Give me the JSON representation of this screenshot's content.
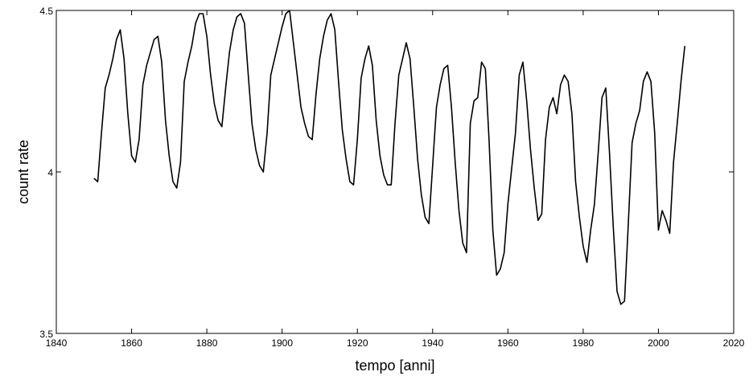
{
  "chart_data": {
    "type": "line",
    "title": "",
    "xlabel": "tempo [anni]",
    "ylabel": "count rate",
    "xlim": [
      1840,
      2020
    ],
    "ylim": [
      3.5,
      4.5
    ],
    "x_ticks": [
      1840,
      1860,
      1880,
      1900,
      1920,
      1940,
      1960,
      1980,
      2000,
      2020
    ],
    "y_ticks": [
      3.5,
      4,
      4.5
    ],
    "x_tick_labels": [
      "1840",
      "1860",
      "1880",
      "1900",
      "1920",
      "1940",
      "1960",
      "1980",
      "2000",
      "2020"
    ],
    "y_tick_labels": [
      "3.5",
      "4",
      "4.5"
    ],
    "grid": false,
    "legend": "none",
    "line_color": "#000000",
    "series": [
      {
        "x": [
          1850,
          1851,
          1852,
          1853,
          1854,
          1855,
          1856,
          1857,
          1858,
          1859,
          1860,
          1861,
          1862,
          1863,
          1864,
          1865,
          1866,
          1867,
          1868,
          1869,
          1870,
          1871,
          1872,
          1873,
          1874,
          1875,
          1876,
          1877,
          1878,
          1879,
          1880,
          1881,
          1882,
          1883,
          1884,
          1885,
          1886,
          1887,
          1888,
          1889,
          1890,
          1891,
          1892,
          1893,
          1894,
          1895,
          1896,
          1897,
          1898,
          1899,
          1900,
          1901,
          1902,
          1903,
          1904,
          1905,
          1906,
          1907,
          1908,
          1909,
          1910,
          1911,
          1912,
          1913,
          1914,
          1915,
          1916,
          1917,
          1918,
          1919,
          1920,
          1921,
          1922,
          1923,
          1924,
          1925,
          1926,
          1927,
          1928,
          1929,
          1930,
          1931,
          1932,
          1933,
          1934,
          1935,
          1936,
          1937,
          1938,
          1939,
          1940,
          1941,
          1942,
          1943,
          1944,
          1945,
          1946,
          1947,
          1948,
          1949,
          1950,
          1951,
          1952,
          1953,
          1954,
          1955,
          1956,
          1957,
          1958,
          1959,
          1960,
          1961,
          1962,
          1963,
          1964,
          1965,
          1966,
          1967,
          1968,
          1969,
          1970,
          1971,
          1972,
          1973,
          1974,
          1975,
          1976,
          1977,
          1978,
          1979,
          1980,
          1981,
          1982,
          1983,
          1984,
          1985,
          1986,
          1987,
          1988,
          1989,
          1990,
          1991,
          1992,
          1993,
          1994,
          1995,
          1996,
          1997,
          1998,
          1999,
          2000,
          2001,
          2002,
          2003,
          2004,
          2005,
          2006,
          2007
        ],
        "values": [
          3.98,
          3.97,
          4.12,
          4.26,
          4.3,
          4.35,
          4.41,
          4.44,
          4.35,
          4.18,
          4.05,
          4.03,
          4.1,
          4.27,
          4.33,
          4.37,
          4.41,
          4.42,
          4.34,
          4.16,
          4.05,
          3.97,
          3.95,
          4.03,
          4.28,
          4.34,
          4.39,
          4.46,
          4.49,
          4.49,
          4.42,
          4.3,
          4.21,
          4.16,
          4.14,
          4.26,
          4.37,
          4.44,
          4.48,
          4.49,
          4.46,
          4.3,
          4.15,
          4.07,
          4.02,
          4.0,
          4.12,
          4.3,
          4.35,
          4.4,
          4.45,
          4.49,
          4.5,
          4.4,
          4.3,
          4.2,
          4.15,
          4.11,
          4.1,
          4.24,
          4.35,
          4.42,
          4.47,
          4.49,
          4.44,
          4.28,
          4.13,
          4.04,
          3.97,
          3.96,
          4.1,
          4.29,
          4.35,
          4.39,
          4.33,
          4.16,
          4.05,
          3.99,
          3.96,
          3.96,
          4.15,
          4.3,
          4.35,
          4.4,
          4.35,
          4.2,
          4.04,
          3.93,
          3.86,
          3.84,
          4.02,
          4.2,
          4.27,
          4.32,
          4.33,
          4.2,
          4.03,
          3.88,
          3.78,
          3.75,
          4.15,
          4.22,
          4.23,
          4.34,
          4.32,
          4.1,
          3.82,
          3.68,
          3.7,
          3.75,
          3.9,
          4.01,
          4.12,
          4.3,
          4.34,
          4.22,
          4.07,
          3.95,
          3.85,
          3.87,
          4.1,
          4.2,
          4.23,
          4.18,
          4.27,
          4.3,
          4.28,
          4.18,
          3.97,
          3.86,
          3.77,
          3.72,
          3.82,
          3.9,
          4.06,
          4.23,
          4.26,
          4.06,
          3.83,
          3.63,
          3.59,
          3.6,
          3.84,
          4.09,
          4.15,
          4.19,
          4.28,
          4.31,
          4.28,
          4.12,
          3.82,
          3.88,
          3.85,
          3.81,
          4.03,
          4.15,
          4.28,
          4.39
        ]
      }
    ]
  }
}
